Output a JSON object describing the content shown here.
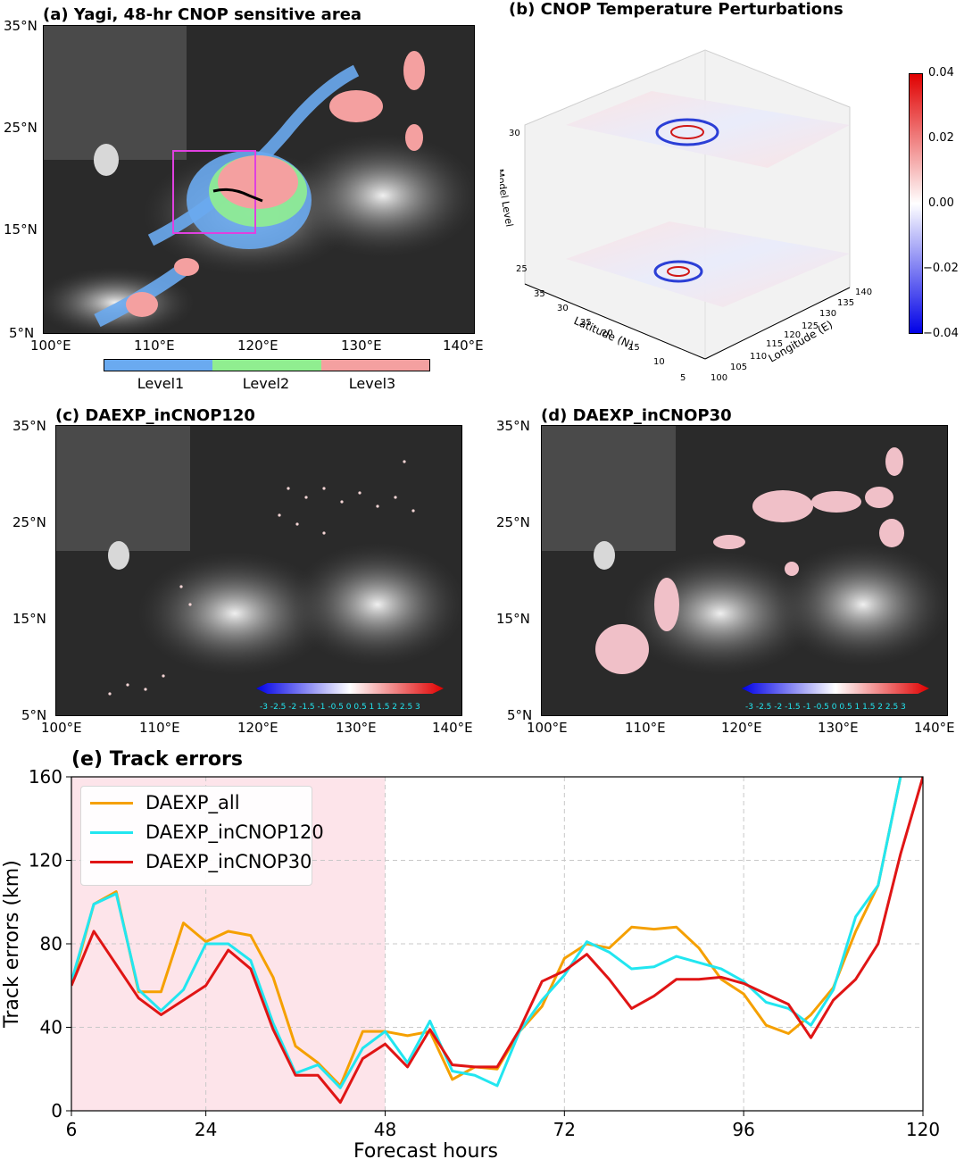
{
  "panel_a": {
    "title": "(a) Yagi, 48-hr CNOP sensitive area",
    "lat_labels": [
      "35°N",
      "25°N",
      "15°N",
      "5°N"
    ],
    "lon_labels": [
      "100°E",
      "110°E",
      "120°E",
      "130°E",
      "140°E"
    ],
    "colorbar_labels": [
      "Level1",
      "Level2",
      "Level3"
    ],
    "colorbar_colors": [
      "#6aaaf0",
      "#90ee90",
      "#f4a0a0"
    ],
    "box_color": "#e040e0"
  },
  "panel_b": {
    "title": "(b) CNOP Temperature Perturbations",
    "zlabel": "Model Level",
    "z_ticks": [
      "30",
      "25"
    ],
    "ylabel": "Latitude (N)",
    "lat_ticks": [
      "35",
      "30",
      "25",
      "20",
      "15",
      "10",
      "5"
    ],
    "xlabel": "Longitude (E)",
    "lon_ticks": [
      "100",
      "105",
      "110",
      "115",
      "120",
      "125",
      "130",
      "135",
      "140"
    ],
    "colorbar_ticks": [
      "0.04",
      "0.02",
      "0.00",
      "−0.02",
      "−0.04"
    ]
  },
  "panel_c": {
    "title": "(c) DAEXP_inCNOP120",
    "lat_labels": [
      "35°N",
      "25°N",
      "15°N",
      "5°N"
    ],
    "lon_labels": [
      "100°E",
      "110°E",
      "120°E",
      "130°E",
      "140°E"
    ],
    "cbar_ticks": "-3 -2.5 -2 -1.5 -1 -0.5 0 0.5 1 1.5 2 2.5 3"
  },
  "panel_d": {
    "title": "(d) DAEXP_inCNOP30",
    "lat_labels": [
      "35°N",
      "25°N",
      "15°N",
      "5°N"
    ],
    "lon_labels": [
      "100°E",
      "110°E",
      "120°E",
      "130°E",
      "140°E"
    ],
    "cbar_ticks": "-3 -2.5 -2 -1.5 -1 -0.5 0 0.5 1 1.5 2 2.5 3"
  },
  "chart_data": {
    "type": "line",
    "title": "(e) Track errors",
    "xlabel": "Forecast hours",
    "ylabel": "Track errors (km)",
    "xlim": [
      6,
      120
    ],
    "ylim": [
      0,
      160
    ],
    "xticks": [
      6,
      24,
      48,
      72,
      96,
      120
    ],
    "yticks": [
      0,
      40,
      80,
      120,
      160
    ],
    "grid": true,
    "shaded_region": [
      6,
      48
    ],
    "shade_color": "#fde4ea",
    "legend_position": "top-left",
    "x": [
      6,
      9,
      12,
      15,
      18,
      21,
      24,
      27,
      30,
      33,
      36,
      39,
      42,
      45,
      48,
      51,
      54,
      57,
      60,
      63,
      66,
      69,
      72,
      75,
      78,
      81,
      84,
      87,
      90,
      93,
      96,
      99,
      102,
      105,
      108,
      111,
      114,
      117,
      120
    ],
    "series": [
      {
        "name": "DAEXP_all",
        "color": "#f5a000",
        "values": [
          60,
          99,
          105,
          57,
          57,
          90,
          81,
          86,
          84,
          64,
          31,
          23,
          12,
          38,
          38,
          36,
          38,
          15,
          21,
          20,
          38,
          50,
          73,
          80,
          78,
          88,
          87,
          88,
          78,
          63,
          56,
          41,
          37,
          46,
          59,
          86,
          108,
          160,
          null
        ]
      },
      {
        "name": "DAEXP_inCNOP120",
        "color": "#22e6f0",
        "values": [
          62,
          99,
          104,
          58,
          48,
          58,
          80,
          80,
          72,
          42,
          18,
          22,
          11,
          30,
          38,
          23,
          43,
          19,
          17,
          12,
          38,
          53,
          65,
          81,
          76,
          68,
          69,
          74,
          71,
          68,
          62,
          52,
          49,
          41,
          58,
          93,
          108,
          160,
          null
        ]
      },
      {
        "name": "DAEXP_inCNOP30",
        "color": "#e01515",
        "values": [
          60,
          86,
          70,
          54,
          46,
          53,
          60,
          77,
          68,
          39,
          17,
          17,
          4,
          25,
          32,
          21,
          39,
          22,
          21,
          21,
          39,
          62,
          67,
          75,
          63,
          49,
          55,
          63,
          63,
          64,
          61,
          56,
          51,
          35,
          53,
          63,
          80,
          123,
          160
        ]
      }
    ]
  }
}
